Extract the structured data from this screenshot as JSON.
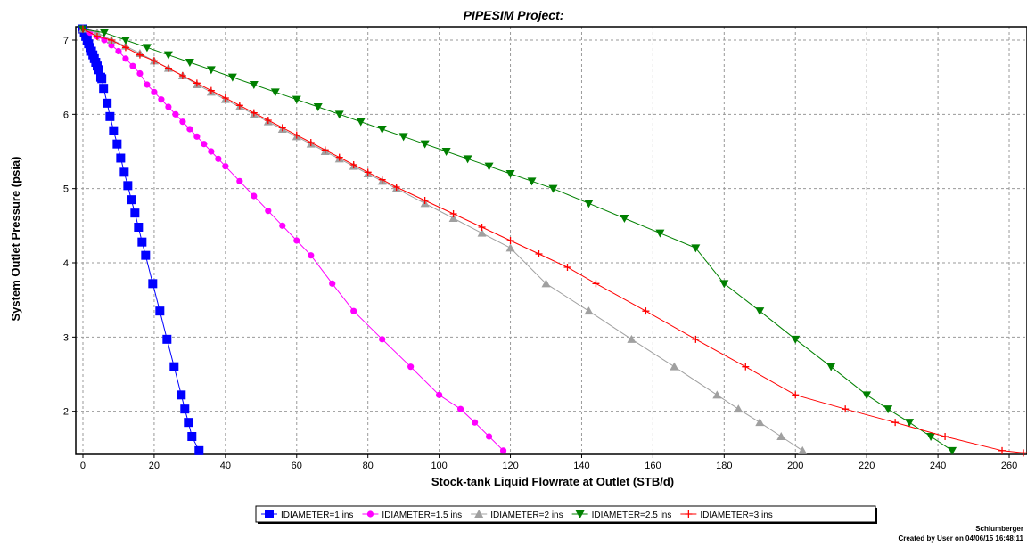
{
  "chart_data": {
    "type": "line",
    "title": "PIPESIM Project:",
    "xlabel": "Stock-tank Liquid Flowrate at Outlet (STB/d)",
    "ylabel": "System Outlet Pressure (psia)",
    "xlim": [
      -2,
      265
    ],
    "ylim": [
      1.42,
      7.18
    ],
    "xticks": [
      0,
      20,
      40,
      60,
      80,
      100,
      120,
      140,
      160,
      180,
      200,
      220,
      240,
      260
    ],
    "yticks": [
      2,
      3,
      4,
      5,
      6,
      7
    ],
    "grid": true,
    "legend_position": "bottom-center",
    "series": [
      {
        "name": "IDIAMETER=1 ins",
        "color": "#0000ff",
        "marker": "square",
        "points": [
          [
            0,
            7.15
          ],
          [
            0.4,
            7.1
          ],
          [
            0.8,
            7.05
          ],
          [
            1.2,
            7.0
          ],
          [
            1.6,
            6.95
          ],
          [
            2.0,
            6.9
          ],
          [
            2.4,
            6.85
          ],
          [
            2.8,
            6.8
          ],
          [
            3.2,
            6.75
          ],
          [
            3.6,
            6.7
          ],
          [
            4.0,
            6.65
          ],
          [
            4.5,
            6.6
          ],
          [
            5,
            6.5
          ],
          [
            5.3,
            6.48
          ],
          [
            5.8,
            6.35
          ],
          [
            6.8,
            6.15
          ],
          [
            7.6,
            5.97
          ],
          [
            8.6,
            5.78
          ],
          [
            9.6,
            5.6
          ],
          [
            10.6,
            5.41
          ],
          [
            11.6,
            5.22
          ],
          [
            12.6,
            5.04
          ],
          [
            13.6,
            4.85
          ],
          [
            14.6,
            4.67
          ],
          [
            15.6,
            4.48
          ],
          [
            16.6,
            4.28
          ],
          [
            17.6,
            4.1
          ],
          [
            19.6,
            3.72
          ],
          [
            21.6,
            3.35
          ],
          [
            23.6,
            2.97
          ],
          [
            25.6,
            2.6
          ],
          [
            27.6,
            2.22
          ],
          [
            28.6,
            2.03
          ],
          [
            29.6,
            1.85
          ],
          [
            30.6,
            1.66
          ],
          [
            32.6,
            1.47
          ]
        ]
      },
      {
        "name": "IDIAMETER=1.5 ins",
        "color": "#ff00ff",
        "marker": "circle",
        "points": [
          [
            0,
            7.15
          ],
          [
            2,
            7.1
          ],
          [
            4,
            7.05
          ],
          [
            6,
            7.0
          ],
          [
            8,
            6.93
          ],
          [
            10,
            6.85
          ],
          [
            12,
            6.75
          ],
          [
            14,
            6.65
          ],
          [
            16,
            6.55
          ],
          [
            18,
            6.4
          ],
          [
            20,
            6.3
          ],
          [
            22,
            6.2
          ],
          [
            24,
            6.1
          ],
          [
            26,
            6.0
          ],
          [
            28,
            5.9
          ],
          [
            30,
            5.8
          ],
          [
            32,
            5.7
          ],
          [
            34,
            5.6
          ],
          [
            36,
            5.5
          ],
          [
            38,
            5.4
          ],
          [
            40,
            5.3
          ],
          [
            44,
            5.1
          ],
          [
            48,
            4.9
          ],
          [
            52,
            4.7
          ],
          [
            56,
            4.5
          ],
          [
            60,
            4.3
          ],
          [
            64,
            4.1
          ],
          [
            70,
            3.72
          ],
          [
            76,
            3.35
          ],
          [
            84,
            2.97
          ],
          [
            92,
            2.6
          ],
          [
            100,
            2.22
          ],
          [
            106,
            2.03
          ],
          [
            110,
            1.85
          ],
          [
            114,
            1.66
          ],
          [
            118,
            1.47
          ]
        ]
      },
      {
        "name": "IDIAMETER=2 ins",
        "color": "#a0a0a0",
        "marker": "triangle-up",
        "points": [
          [
            0,
            7.15
          ],
          [
            4,
            7.1
          ],
          [
            8,
            7.0
          ],
          [
            12,
            6.92
          ],
          [
            16,
            6.82
          ],
          [
            20,
            6.72
          ],
          [
            24,
            6.62
          ],
          [
            28,
            6.52
          ],
          [
            32,
            6.4
          ],
          [
            36,
            6.3
          ],
          [
            40,
            6.2
          ],
          [
            44,
            6.1
          ],
          [
            48,
            6.0
          ],
          [
            52,
            5.9
          ],
          [
            56,
            5.8
          ],
          [
            60,
            5.7
          ],
          [
            64,
            5.6
          ],
          [
            68,
            5.5
          ],
          [
            72,
            5.4
          ],
          [
            76,
            5.3
          ],
          [
            80,
            5.2
          ],
          [
            84,
            5.1
          ],
          [
            88,
            5.0
          ],
          [
            96,
            4.8
          ],
          [
            104,
            4.6
          ],
          [
            112,
            4.4
          ],
          [
            120,
            4.2
          ],
          [
            130,
            3.72
          ],
          [
            142,
            3.35
          ],
          [
            154,
            2.97
          ],
          [
            166,
            2.6
          ],
          [
            178,
            2.22
          ],
          [
            184,
            2.03
          ],
          [
            190,
            1.85
          ],
          [
            196,
            1.66
          ],
          [
            202,
            1.47
          ]
        ]
      },
      {
        "name": "IDIAMETER=2.5 ins",
        "color": "#008000",
        "marker": "triangle-down",
        "points": [
          [
            0,
            7.15
          ],
          [
            6,
            7.1
          ],
          [
            12,
            7.0
          ],
          [
            18,
            6.9
          ],
          [
            24,
            6.8
          ],
          [
            30,
            6.7
          ],
          [
            36,
            6.6
          ],
          [
            42,
            6.5
          ],
          [
            48,
            6.4
          ],
          [
            54,
            6.3
          ],
          [
            60,
            6.2
          ],
          [
            66,
            6.1
          ],
          [
            72,
            6.0
          ],
          [
            78,
            5.9
          ],
          [
            84,
            5.8
          ],
          [
            90,
            5.7
          ],
          [
            96,
            5.6
          ],
          [
            102,
            5.5
          ],
          [
            108,
            5.4
          ],
          [
            114,
            5.3
          ],
          [
            120,
            5.2
          ],
          [
            126,
            5.1
          ],
          [
            132,
            5.0
          ],
          [
            142,
            4.8
          ],
          [
            152,
            4.6
          ],
          [
            162,
            4.4
          ],
          [
            172,
            4.2
          ],
          [
            180,
            3.72
          ],
          [
            190,
            3.35
          ],
          [
            200,
            2.97
          ],
          [
            210,
            2.6
          ],
          [
            220,
            2.22
          ],
          [
            226,
            2.03
          ],
          [
            232,
            1.85
          ],
          [
            238,
            1.66
          ],
          [
            244,
            1.47
          ]
        ]
      },
      {
        "name": "IDIAMETER=3 ins",
        "color": "#ff0000",
        "marker": "plus",
        "points": [
          [
            0,
            7.15
          ],
          [
            4,
            7.05
          ],
          [
            8,
            7.0
          ],
          [
            12,
            6.9
          ],
          [
            16,
            6.8
          ],
          [
            20,
            6.72
          ],
          [
            24,
            6.62
          ],
          [
            28,
            6.52
          ],
          [
            32,
            6.42
          ],
          [
            36,
            6.32
          ],
          [
            40,
            6.22
          ],
          [
            44,
            6.12
          ],
          [
            48,
            6.02
          ],
          [
            52,
            5.92
          ],
          [
            56,
            5.82
          ],
          [
            60,
            5.72
          ],
          [
            64,
            5.62
          ],
          [
            68,
            5.52
          ],
          [
            72,
            5.42
          ],
          [
            76,
            5.32
          ],
          [
            80,
            5.22
          ],
          [
            84,
            5.12
          ],
          [
            88,
            5.02
          ],
          [
            96,
            4.84
          ],
          [
            104,
            4.66
          ],
          [
            112,
            4.48
          ],
          [
            120,
            4.3
          ],
          [
            128,
            4.12
          ],
          [
            136,
            3.94
          ],
          [
            144,
            3.72
          ],
          [
            158,
            3.35
          ],
          [
            172,
            2.97
          ],
          [
            186,
            2.6
          ],
          [
            200,
            2.22
          ],
          [
            214,
            2.03
          ],
          [
            228,
            1.85
          ],
          [
            242,
            1.66
          ],
          [
            258,
            1.47
          ],
          [
            264,
            1.44
          ]
        ]
      }
    ]
  },
  "footer": {
    "company": "Schlumberger",
    "created": "Created by User on 04/06/15 16:48:11"
  }
}
